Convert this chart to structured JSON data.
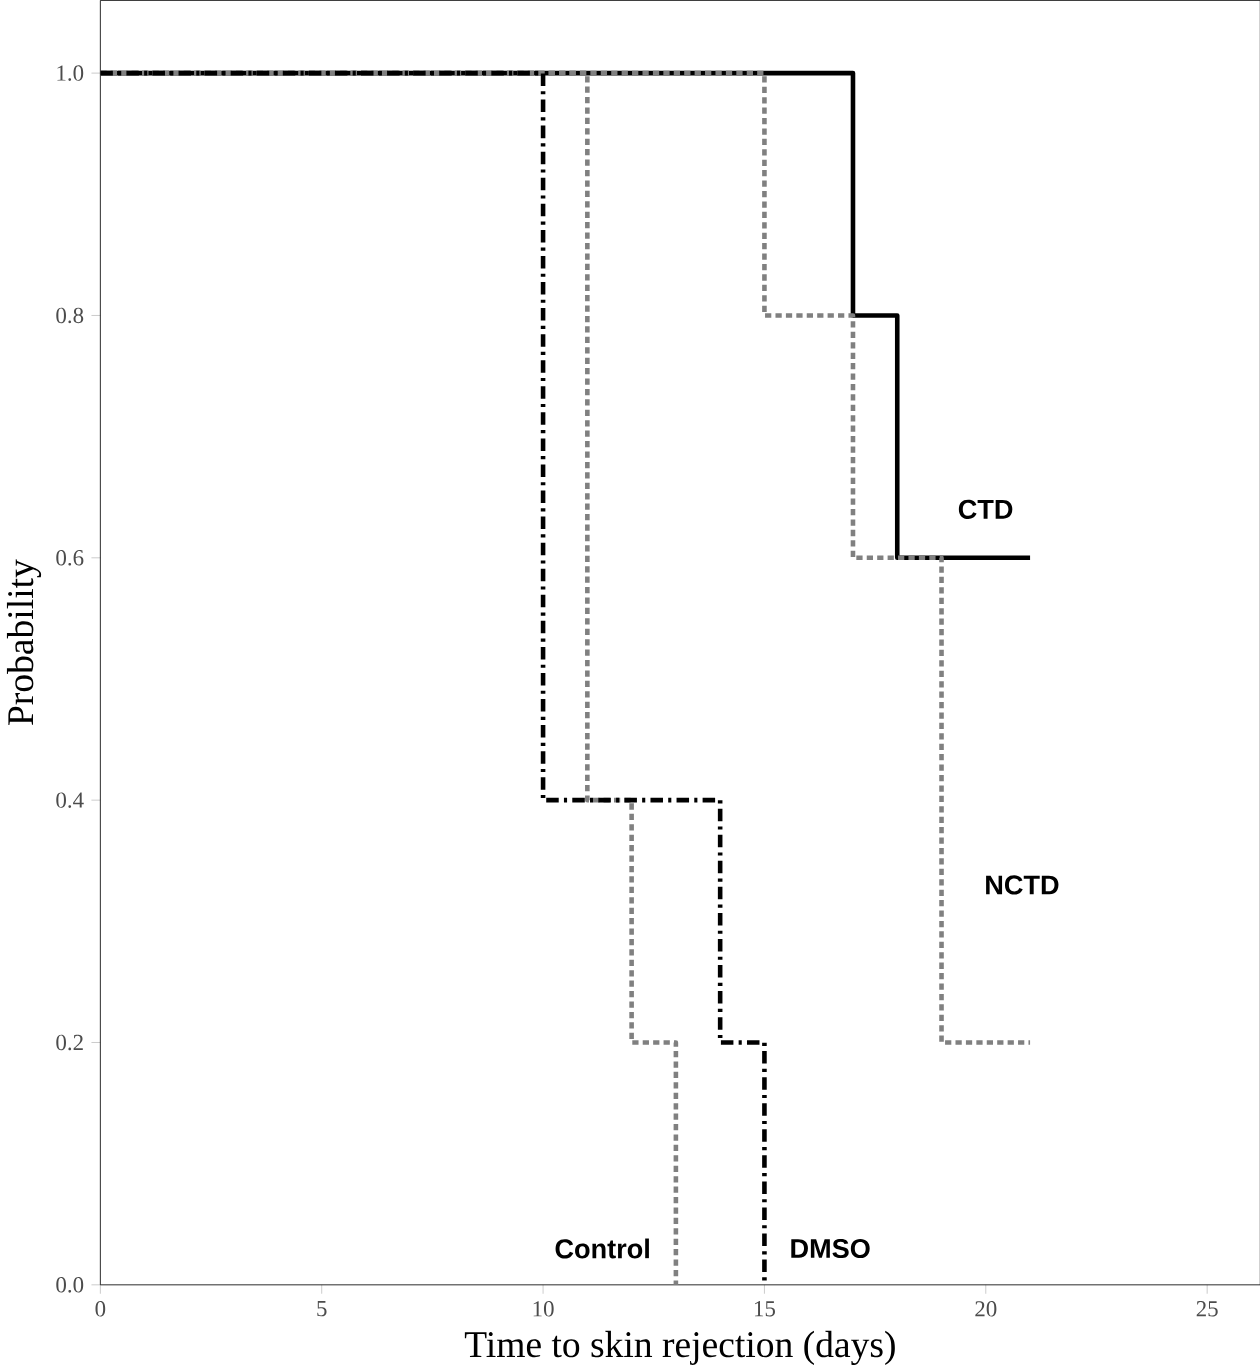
{
  "chart_data": {
    "type": "step",
    "xlabel": "Time to skin rejection (days)",
    "ylabel": "Probability",
    "xlim": [
      0,
      26.2
    ],
    "ylim": [
      0,
      1.06
    ],
    "xticks": [
      0,
      5,
      10,
      15,
      20,
      25
    ],
    "yticks": [
      {
        "value": 0,
        "label": "0.0"
      },
      {
        "value": 0.2,
        "label": "0.2"
      },
      {
        "value": 0.4,
        "label": "0.4"
      },
      {
        "value": 0.6,
        "label": "0.6"
      },
      {
        "value": 0.8,
        "label": "0.8"
      },
      {
        "value": 1,
        "label": "1.0"
      }
    ],
    "series": [
      {
        "name": "CTD",
        "color": "#000000",
        "line_style": "solid",
        "x": [
          0,
          17,
          18,
          21
        ],
        "values": [
          1,
          0.8,
          0.6,
          0.6
        ]
      },
      {
        "name": "NCTD",
        "color": "#808080",
        "line_style": "dotted",
        "x": [
          0,
          15,
          17,
          19,
          21
        ],
        "values": [
          1,
          0.8,
          0.6,
          0.2,
          0.2
        ]
      },
      {
        "name": "Control",
        "color": "#808080",
        "line_style": "dotted",
        "x": [
          0,
          11,
          12,
          13
        ],
        "values": [
          1,
          0.4,
          0.2,
          0
        ]
      },
      {
        "name": "DMSO",
        "color": "#000000",
        "line_style": "dashed",
        "x": [
          0,
          10,
          14,
          15
        ],
        "values": [
          1,
          0.4,
          0.2,
          0
        ]
      }
    ]
  }
}
